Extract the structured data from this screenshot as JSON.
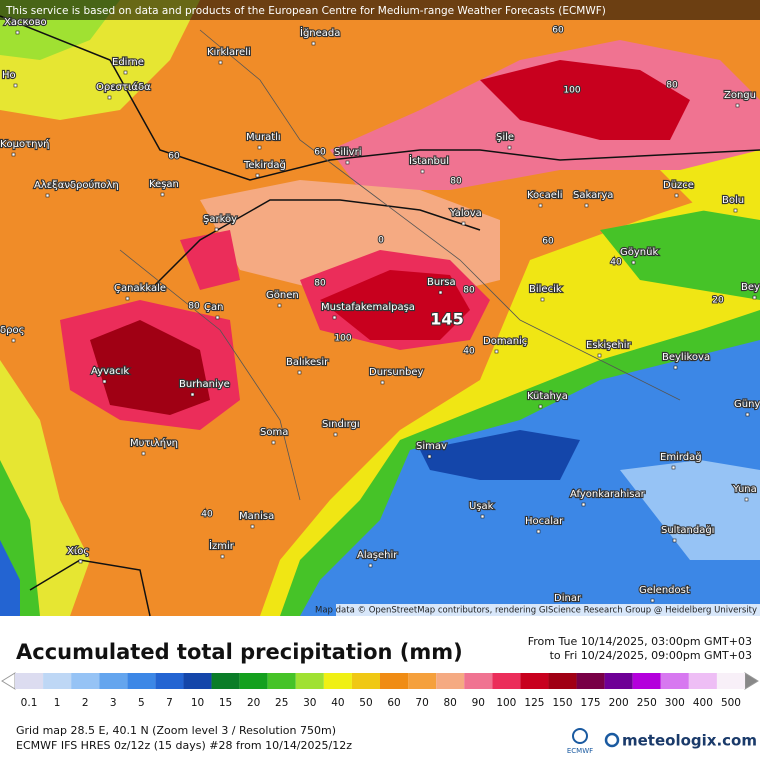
{
  "header": {
    "notice": "This service is based on data and products of the European Centre for Medium-range Weather Forecasts (ECMWF)"
  },
  "map": {
    "places": [
      "Хасково",
      "Но",
      "Kırklareli",
      "İğneada",
      "Edirne",
      "Ορεστιάδα",
      "Κομοτηνή",
      "Muratlı",
      "Silivri",
      "İstanbul",
      "Şile",
      "Zongu",
      "Tekirdağ",
      "Αλεξανδρούπολη",
      "Keşan",
      "Kocaeli",
      "Sakarya",
      "Düzce",
      "Bolu",
      "Yalova",
      "Şarköy",
      "Göynük",
      "Çanakkale",
      "Bursa",
      "Bilecik",
      "Gönen",
      "Çan",
      "Mustafakemalpaşa",
      "Bey",
      "δρος",
      "Domaniç",
      "Eskişehir",
      "Beylikova",
      "Ayvacık",
      "Burhaniye",
      "Balıkesir",
      "Dursunbey",
      "Kütahya",
      "Güny",
      "Μυτιλήνη",
      "Soma",
      "Sındırgı",
      "Simav",
      "Emirdağ",
      "Yuna",
      "Afyonkarahisar",
      "Uşak",
      "Manisa",
      "Hocalar",
      "Sultandağı",
      "Χίος",
      "İzmir",
      "Alaşehir",
      "Dinar",
      "Gelendost"
    ],
    "contour_labels": [
      60,
      100,
      80,
      60,
      60,
      80,
      60,
      40,
      20,
      0,
      80,
      80,
      80,
      100,
      40,
      40
    ],
    "max_label": 145,
    "attribution": "Map data © OpenStreetMap contributors, rendering GIScience Research Group @ Heidelberg University"
  },
  "title": "Accumulated total precipitation (mm)",
  "period": {
    "from": "From Tue 10/14/2025, 03:00pm GMT+03",
    "to": "to Fri 10/24/2025, 09:00pm GMT+03"
  },
  "legend": {
    "values": [
      0.1,
      1,
      2,
      3,
      5,
      7,
      10,
      15,
      20,
      25,
      30,
      40,
      50,
      60,
      70,
      80,
      90,
      100,
      125,
      150,
      175,
      200,
      250,
      300,
      400,
      500
    ],
    "colors": [
      "#dcdcf0",
      "#bed7f5",
      "#96c3f5",
      "#64a5ee",
      "#3c87e6",
      "#2364d2",
      "#1446aa",
      "#0a7d28",
      "#14a01e",
      "#46c328",
      "#a0e132",
      "#f0f014",
      "#f0c814",
      "#f08c14",
      "#f5a03c",
      "#f5aa82",
      "#f07391",
      "#eb2d5a",
      "#c8001e",
      "#a00014",
      "#780046",
      "#6e0096",
      "#b400dc",
      "#d778f0",
      "#eebef5",
      "#f8f0f8"
    ]
  },
  "footer": {
    "grid": "Grid map 28.5 E, 40.1 N (Zoom level 3 / Resolution 750m)",
    "model": "ECMWF IFS HRES 0z/12z (15 days) #28 from 10/14/2025/12z"
  },
  "logos": {
    "ecmwf": "ECMWF",
    "meteologix": "meteologix.com"
  }
}
